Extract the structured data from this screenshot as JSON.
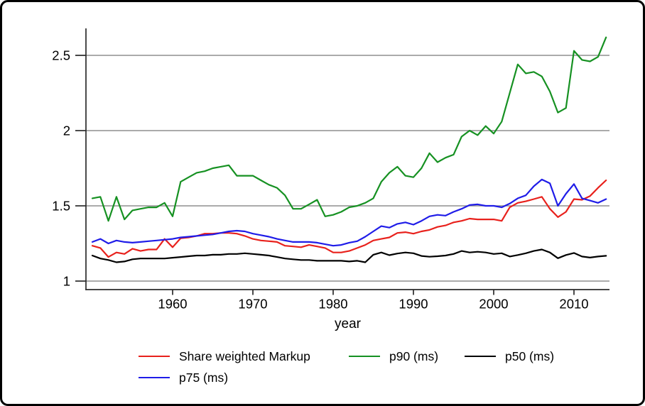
{
  "figure": {
    "background": "#ffffff",
    "border_color": "#000000"
  },
  "chart_data": {
    "type": "line",
    "title": "",
    "xlabel": "year",
    "ylabel": "",
    "grid": "horizontal",
    "legend_position": "bottom",
    "xlim": [
      1949,
      2015
    ],
    "ylim": [
      1.0,
      2.7
    ],
    "x_ticks": [
      1960,
      1970,
      1980,
      1990,
      2000,
      2010
    ],
    "y_ticks": [
      {
        "label": "1",
        "value": 1.0
      },
      {
        "label": "1.5",
        "value": 1.5
      },
      {
        "label": "2",
        "value": 2.0
      },
      {
        "label": "2.5",
        "value": 2.5
      }
    ],
    "x": [
      1950,
      1951,
      1952,
      1953,
      1954,
      1955,
      1956,
      1957,
      1958,
      1959,
      1960,
      1961,
      1962,
      1963,
      1964,
      1965,
      1966,
      1967,
      1968,
      1969,
      1970,
      1971,
      1972,
      1973,
      1974,
      1975,
      1976,
      1977,
      1978,
      1979,
      1980,
      1981,
      1982,
      1983,
      1984,
      1985,
      1986,
      1987,
      1988,
      1989,
      1990,
      1991,
      1992,
      1993,
      1994,
      1995,
      1996,
      1997,
      1998,
      1999,
      2000,
      2001,
      2002,
      2003,
      2004,
      2005,
      2006,
      2007,
      2008,
      2009,
      2010,
      2011,
      2012,
      2013,
      2014
    ],
    "series": [
      {
        "id": "share_weighted_markup",
        "name": "Share weighted Markup",
        "color": "#e8211c",
        "values": [
          1.235,
          1.22,
          1.16,
          1.19,
          1.18,
          1.215,
          1.2,
          1.21,
          1.21,
          1.28,
          1.225,
          1.285,
          1.29,
          1.3,
          1.315,
          1.315,
          1.32,
          1.32,
          1.315,
          1.3,
          1.28,
          1.27,
          1.265,
          1.26,
          1.235,
          1.23,
          1.225,
          1.24,
          1.23,
          1.22,
          1.19,
          1.19,
          1.2,
          1.22,
          1.24,
          1.27,
          1.28,
          1.29,
          1.32,
          1.325,
          1.315,
          1.33,
          1.34,
          1.36,
          1.37,
          1.39,
          1.4,
          1.415,
          1.41,
          1.41,
          1.41,
          1.4,
          1.49,
          1.52,
          1.53,
          1.545,
          1.56,
          1.48,
          1.425,
          1.46,
          1.545,
          1.54,
          1.565,
          1.62,
          1.67
        ]
      },
      {
        "id": "p90",
        "name": "p90 (ms)",
        "color": "#169122",
        "values": [
          1.55,
          1.56,
          1.4,
          1.56,
          1.41,
          1.47,
          1.48,
          1.49,
          1.49,
          1.52,
          1.43,
          1.66,
          1.69,
          1.72,
          1.73,
          1.75,
          1.76,
          1.77,
          1.7,
          1.7,
          1.7,
          1.67,
          1.64,
          1.62,
          1.57,
          1.48,
          1.48,
          1.51,
          1.54,
          1.43,
          1.44,
          1.46,
          1.49,
          1.5,
          1.52,
          1.55,
          1.66,
          1.72,
          1.76,
          1.7,
          1.69,
          1.75,
          1.85,
          1.79,
          1.82,
          1.84,
          1.96,
          2.0,
          1.97,
          2.03,
          1.98,
          2.06,
          2.25,
          2.44,
          2.38,
          2.39,
          2.36,
          2.26,
          2.12,
          2.15,
          2.53,
          2.47,
          2.46,
          2.49,
          2.62
        ]
      },
      {
        "id": "p50",
        "name": "p50 (ms)",
        "color": "#000000",
        "values": [
          1.17,
          1.15,
          1.14,
          1.125,
          1.13,
          1.145,
          1.15,
          1.15,
          1.15,
          1.15,
          1.155,
          1.16,
          1.165,
          1.17,
          1.17,
          1.175,
          1.175,
          1.18,
          1.18,
          1.185,
          1.18,
          1.175,
          1.17,
          1.16,
          1.15,
          1.145,
          1.14,
          1.14,
          1.135,
          1.135,
          1.135,
          1.135,
          1.13,
          1.135,
          1.125,
          1.175,
          1.19,
          1.172,
          1.183,
          1.19,
          1.185,
          1.167,
          1.162,
          1.165,
          1.17,
          1.18,
          1.2,
          1.19,
          1.195,
          1.19,
          1.18,
          1.185,
          1.163,
          1.173,
          1.185,
          1.2,
          1.21,
          1.19,
          1.152,
          1.173,
          1.187,
          1.163,
          1.156,
          1.163,
          1.168
        ]
      },
      {
        "id": "p75",
        "name": "p75 (ms)",
        "color": "#1f1ce8",
        "values": [
          1.26,
          1.28,
          1.25,
          1.27,
          1.26,
          1.255,
          1.26,
          1.265,
          1.27,
          1.275,
          1.28,
          1.29,
          1.295,
          1.3,
          1.305,
          1.31,
          1.32,
          1.33,
          1.335,
          1.33,
          1.315,
          1.305,
          1.295,
          1.28,
          1.27,
          1.26,
          1.26,
          1.26,
          1.255,
          1.245,
          1.235,
          1.24,
          1.255,
          1.265,
          1.295,
          1.33,
          1.365,
          1.355,
          1.38,
          1.39,
          1.375,
          1.4,
          1.43,
          1.44,
          1.435,
          1.46,
          1.48,
          1.505,
          1.51,
          1.5,
          1.5,
          1.49,
          1.515,
          1.55,
          1.57,
          1.63,
          1.675,
          1.65,
          1.5,
          1.58,
          1.645,
          1.55,
          1.535,
          1.52,
          1.545
        ]
      }
    ]
  },
  "legend": {
    "items": [
      {
        "label": "Share weighted Markup",
        "color": "#e8211c"
      },
      {
        "label": "p90 (ms)",
        "color": "#169122"
      },
      {
        "label": "p50 (ms)",
        "color": "#000000"
      },
      {
        "label": "p75 (ms)",
        "color": "#1f1ce8"
      }
    ]
  }
}
